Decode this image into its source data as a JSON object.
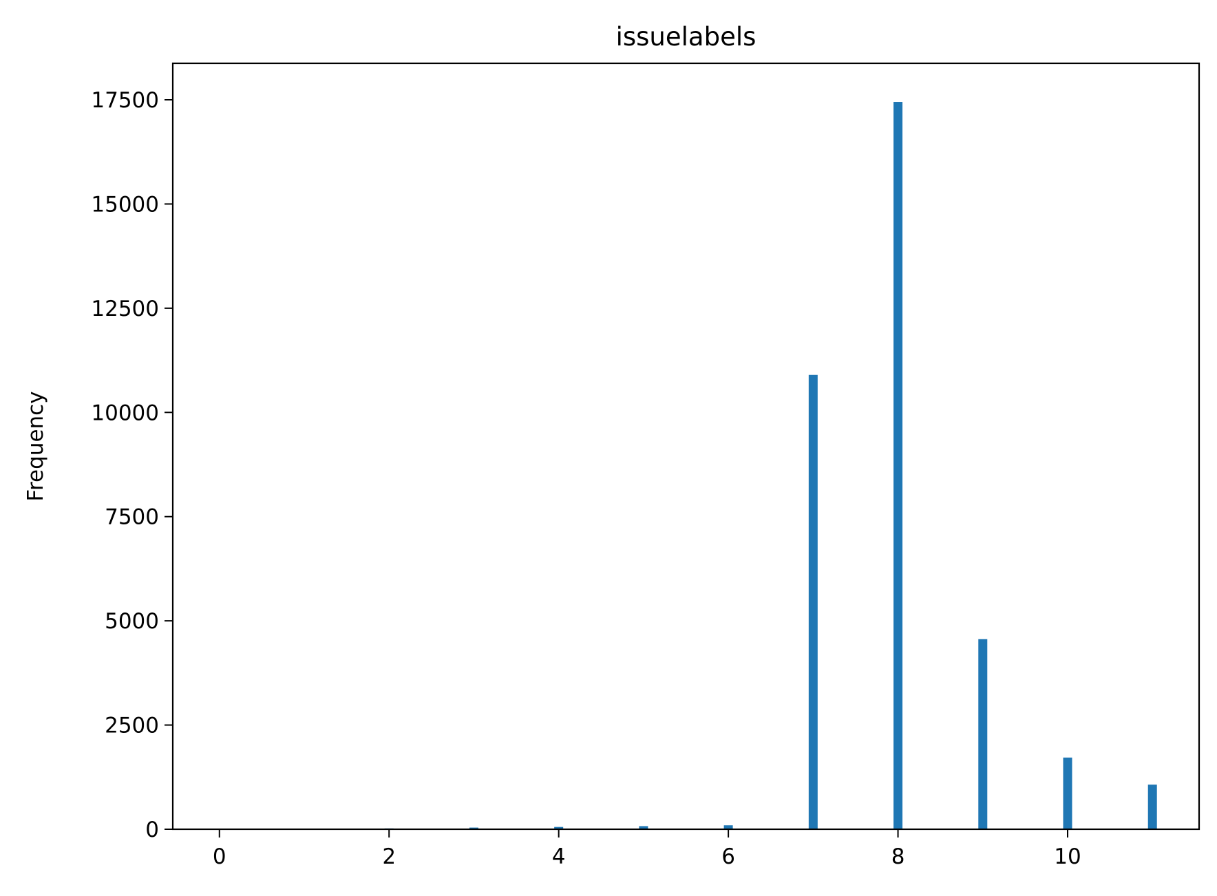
{
  "chart_data": {
    "type": "bar",
    "title": "issuelabels",
    "xlabel": "",
    "ylabel": "Frequency",
    "x": [
      0,
      1,
      2,
      3,
      4,
      5,
      6,
      7,
      8,
      9,
      10,
      11
    ],
    "values": [
      3,
      0,
      20,
      40,
      55,
      75,
      95,
      10900,
      17450,
      4560,
      1720,
      1070
    ],
    "xlim": [
      -0.55,
      11.55
    ],
    "ylim": [
      0,
      18375
    ],
    "xticks": [
      "0",
      "2",
      "4",
      "6",
      "8",
      "10"
    ],
    "xtick_values": [
      0,
      2,
      4,
      6,
      8,
      10
    ],
    "yticks": [
      "0",
      "2500",
      "5000",
      "7500",
      "10000",
      "12500",
      "15000",
      "17500"
    ],
    "ytick_values": [
      0,
      2500,
      5000,
      7500,
      10000,
      12500,
      15000,
      17500
    ],
    "bar_color": "#1f77b4",
    "grid": false,
    "legend": "none"
  }
}
